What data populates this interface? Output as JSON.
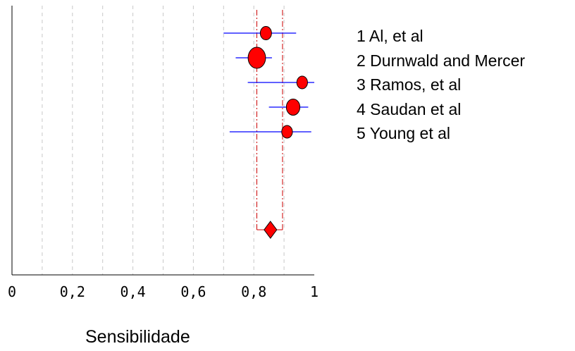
{
  "chart_data": {
    "type": "forest",
    "xlabel": "Sensibilidade",
    "xlim": [
      0,
      1
    ],
    "x_ticks": [
      "0",
      "0,2",
      "0,4",
      "0,6",
      "0,8",
      "1"
    ],
    "x_tick_values": [
      0,
      0.2,
      0.4,
      0.6,
      0.8,
      1
    ],
    "grid_values": [
      0.1,
      0.2,
      0.3,
      0.4,
      0.5,
      0.6,
      0.7,
      0.8,
      0.9
    ],
    "grid": "vertical dashed",
    "legend_position": "right",
    "studies": [
      {
        "label": "1 Al, et al",
        "estimate": 0.84,
        "ci": [
          0.7,
          0.94
        ],
        "weight": 0.75
      },
      {
        "label": "2 Durnwald and Mercer",
        "estimate": 0.81,
        "ci": [
          0.74,
          0.86
        ],
        "weight": 1.3
      },
      {
        "label": "3 Ramos, et al",
        "estimate": 0.96,
        "ci": [
          0.78,
          1.0
        ],
        "weight": 0.7
      },
      {
        "label": "4 Saudan et al",
        "estimate": 0.93,
        "ci": [
          0.85,
          0.98
        ],
        "weight": 0.95
      },
      {
        "label": "5 Young et al",
        "estimate": 0.91,
        "ci": [
          0.72,
          0.99
        ],
        "weight": 0.7
      }
    ],
    "pooled": {
      "estimate": 0.855,
      "ci": [
        0.81,
        0.895
      ]
    },
    "colors": {
      "marker": "#ff0000",
      "marker_outline": "#000000",
      "ci_line": "#0000ff",
      "pooled_ci": "#cc0000",
      "grid": "#c8c8c8",
      "axis": "#000000"
    }
  }
}
